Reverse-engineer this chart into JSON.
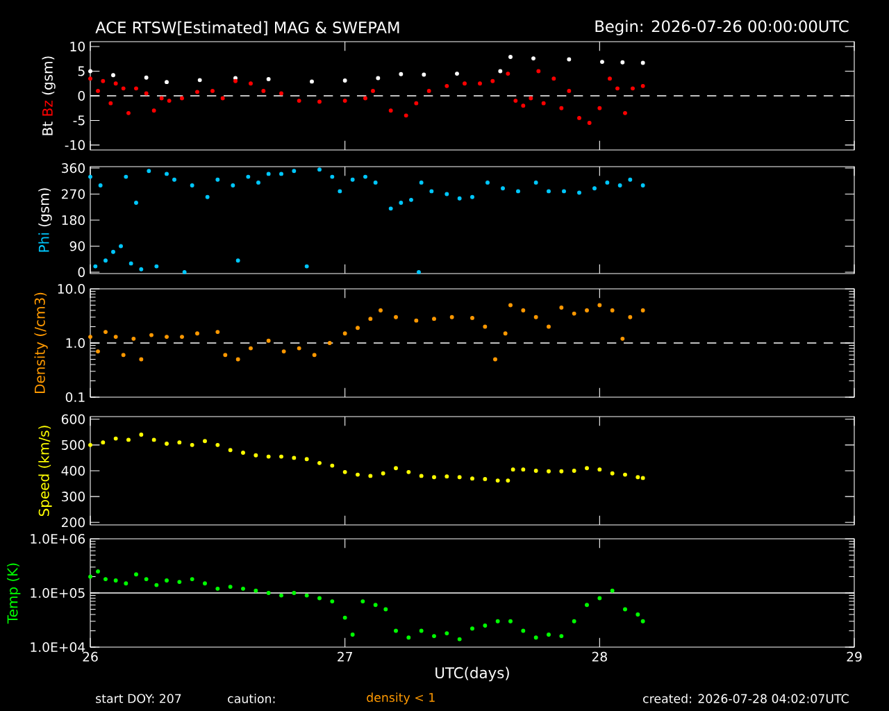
{
  "chart_data": [
    {
      "type": "scatter",
      "title": "ACE RTSW[Estimated] MAG & SWEPAM",
      "subtitle": "Begin: 2026-07-26 00:00:00UTC",
      "ylabel": "(gsm)",
      "marker": "circle",
      "tick_labels": "y",
      "xlim": [
        26,
        29
      ],
      "xticks": [
        26,
        27,
        28,
        29
      ],
      "ylim": [
        -11,
        11
      ],
      "yticks": [
        -10,
        -5,
        0,
        5,
        10
      ],
      "grid": false,
      "ref_lines": [
        {
          "axis": "y",
          "value": 0,
          "color": "#ffffff",
          "line_style": "dashed"
        }
      ],
      "series": [
        {
          "name": "Bt",
          "color": "#ffffff",
          "x": [
            26.0,
            26.09,
            26.22,
            26.3,
            26.43,
            26.57,
            26.7,
            26.87,
            27.0,
            27.13,
            27.22,
            27.31,
            27.44,
            27.61,
            27.65,
            27.74,
            27.88,
            28.01,
            28.09,
            28.17
          ],
          "values": [
            5.0,
            4.2,
            3.7,
            2.8,
            3.2,
            3.6,
            3.4,
            2.9,
            3.1,
            3.6,
            4.4,
            4.3,
            4.5,
            5.0,
            7.9,
            7.6,
            7.4,
            6.9,
            6.8,
            6.7
          ]
        },
        {
          "name": "Bz",
          "color": "#ff0000",
          "x": [
            26.0,
            26.03,
            26.05,
            26.08,
            26.1,
            26.13,
            26.15,
            26.18,
            26.22,
            26.25,
            26.28,
            26.31,
            26.36,
            26.42,
            26.48,
            26.52,
            26.57,
            26.63,
            26.68,
            26.75,
            26.82,
            26.9,
            27.0,
            27.08,
            27.11,
            27.18,
            27.24,
            27.28,
            27.33,
            27.4,
            27.47,
            27.53,
            27.58,
            27.64,
            27.67,
            27.7,
            27.73,
            27.76,
            27.78,
            27.82,
            27.85,
            27.88,
            27.92,
            27.96,
            28.0,
            28.04,
            28.07,
            28.1,
            28.13,
            28.17
          ],
          "values": [
            3.5,
            1.0,
            3.0,
            -1.5,
            2.5,
            1.5,
            -3.5,
            1.5,
            0.5,
            -3.0,
            -0.5,
            -1.0,
            -0.5,
            0.8,
            1.0,
            -0.5,
            3.0,
            2.5,
            1.0,
            0.5,
            -1.0,
            -1.2,
            -1.0,
            -0.5,
            1.0,
            -3.0,
            -4.0,
            -1.5,
            1.0,
            2.0,
            2.5,
            2.5,
            3.0,
            4.5,
            -1.0,
            -2.0,
            -0.5,
            5.0,
            -1.5,
            3.5,
            -2.5,
            1.0,
            -4.5,
            -5.5,
            -2.5,
            3.5,
            1.5,
            -3.5,
            1.5,
            2.0
          ]
        }
      ]
    },
    {
      "type": "scatter",
      "ylabel": "(gsm)",
      "marker": "circle",
      "tick_labels": "y",
      "xlim": [
        26,
        29
      ],
      "xticks": [
        26,
        27,
        28,
        29
      ],
      "ylim": [
        -5,
        365
      ],
      "yticks": [
        0,
        90,
        180,
        270,
        360
      ],
      "grid": false,
      "series": [
        {
          "name": "Phi",
          "color": "#00c8ff",
          "x": [
            26.0,
            26.02,
            26.04,
            26.06,
            26.09,
            26.12,
            26.14,
            26.16,
            26.18,
            26.2,
            26.23,
            26.26,
            26.3,
            26.33,
            26.37,
            26.4,
            26.46,
            26.5,
            26.56,
            26.58,
            26.62,
            26.66,
            26.7,
            26.75,
            26.8,
            26.85,
            26.9,
            26.95,
            26.98,
            27.03,
            27.08,
            27.12,
            27.18,
            27.22,
            27.26,
            27.29,
            27.3,
            27.34,
            27.4,
            27.45,
            27.5,
            27.56,
            27.62,
            27.68,
            27.75,
            27.8,
            27.86,
            27.92,
            27.98,
            28.03,
            28.08,
            28.12,
            28.17
          ],
          "values": [
            330,
            20,
            300,
            40,
            70,
            90,
            330,
            30,
            240,
            10,
            350,
            20,
            340,
            320,
            0,
            300,
            260,
            320,
            300,
            40,
            330,
            310,
            340,
            340,
            350,
            20,
            355,
            330,
            280,
            320,
            330,
            310,
            220,
            240,
            250,
            0,
            310,
            280,
            270,
            255,
            260,
            310,
            290,
            280,
            310,
            280,
            280,
            275,
            290,
            310,
            300,
            320,
            300
          ]
        }
      ]
    },
    {
      "type": "scatter",
      "ylabel": "Density (/cm3)",
      "marker": "circle",
      "tick_labels": "y",
      "log": "y",
      "xlim": [
        26,
        29
      ],
      "xticks": [
        26,
        27,
        28,
        29
      ],
      "ylim": [
        0.1,
        10
      ],
      "yticks": [
        {
          "value": 0.1,
          "label": "0.1"
        },
        {
          "value": 1,
          "label": "1.0"
        },
        {
          "value": 10,
          "label": "10.0"
        }
      ],
      "grid": false,
      "ref_lines": [
        {
          "axis": "y",
          "value": 1,
          "color": "#ffffff",
          "line_style": "dashed"
        }
      ],
      "series": [
        {
          "color": "#ff9900",
          "x": [
            26.0,
            26.03,
            26.06,
            26.1,
            26.13,
            26.17,
            26.2,
            26.24,
            26.3,
            26.36,
            26.42,
            26.5,
            26.53,
            26.58,
            26.63,
            26.7,
            26.76,
            26.82,
            26.88,
            26.94,
            27.0,
            27.05,
            27.1,
            27.14,
            27.2,
            27.28,
            27.35,
            27.42,
            27.5,
            27.55,
            27.59,
            27.63,
            27.65,
            27.7,
            27.75,
            27.8,
            27.85,
            27.9,
            27.95,
            28.0,
            28.05,
            28.09,
            28.12,
            28.17
          ],
          "values": [
            1.3,
            0.7,
            1.6,
            1.3,
            0.6,
            1.2,
            0.5,
            1.4,
            1.3,
            1.3,
            1.5,
            1.6,
            0.6,
            0.5,
            0.8,
            1.1,
            0.7,
            0.8,
            0.6,
            1.0,
            1.5,
            1.9,
            2.8,
            4.0,
            3.0,
            2.6,
            2.8,
            3.0,
            2.9,
            2.0,
            0.5,
            1.5,
            5.0,
            4.0,
            3.0,
            2.0,
            4.5,
            3.5,
            4.0,
            5.0,
            4.0,
            1.2,
            3.0,
            4.0
          ]
        }
      ]
    },
    {
      "type": "scatter",
      "ylabel": "Speed (km/s)",
      "marker": "circle",
      "tick_labels": "y",
      "xlim": [
        26,
        29
      ],
      "xticks": [
        26,
        27,
        28,
        29
      ],
      "ylim": [
        190,
        610
      ],
      "yticks": [
        200,
        300,
        400,
        500,
        600
      ],
      "grid": false,
      "series": [
        {
          "color": "#ffff00",
          "x": [
            26.0,
            26.05,
            26.1,
            26.15,
            26.2,
            26.25,
            26.3,
            26.35,
            26.4,
            26.45,
            26.5,
            26.55,
            26.6,
            26.65,
            26.7,
            26.75,
            26.8,
            26.85,
            26.9,
            26.95,
            27.0,
            27.05,
            27.1,
            27.15,
            27.2,
            27.25,
            27.3,
            27.35,
            27.4,
            27.45,
            27.5,
            27.55,
            27.6,
            27.64,
            27.66,
            27.7,
            27.75,
            27.8,
            27.85,
            27.9,
            27.95,
            28.0,
            28.05,
            28.1,
            28.15,
            28.17
          ],
          "values": [
            500,
            510,
            525,
            520,
            540,
            520,
            505,
            510,
            500,
            515,
            500,
            480,
            470,
            460,
            455,
            455,
            450,
            445,
            430,
            420,
            395,
            385,
            380,
            390,
            410,
            395,
            380,
            375,
            378,
            375,
            370,
            368,
            362,
            362,
            405,
            405,
            400,
            398,
            398,
            400,
            410,
            405,
            390,
            385,
            375,
            372
          ]
        }
      ]
    },
    {
      "type": "scatter",
      "ylabel": "Temp (K)",
      "xlabel": "UTC(days)",
      "marker": "circle",
      "log": "y",
      "xlim": [
        26,
        29
      ],
      "xticks": [
        26,
        27,
        28,
        29
      ],
      "ylim": [
        10000,
        1000000
      ],
      "yticks": [
        {
          "value": 10000,
          "label": "1.0E+04"
        },
        {
          "value": 100000,
          "label": "1.0E+05"
        },
        {
          "value": 1000000,
          "label": "1.0E+06"
        }
      ],
      "grid": false,
      "ref_lines": [
        {
          "axis": "y",
          "value": 100000,
          "color": "#ffffff",
          "line_style": "solid"
        }
      ],
      "annotations": [
        "start DOY: 207",
        "caution:",
        "density < 1",
        "created: 2026-07-28 04:02:07UTC"
      ],
      "series": [
        {
          "color": "#00ff00",
          "x": [
            26.0,
            26.03,
            26.06,
            26.1,
            26.14,
            26.18,
            26.22,
            26.26,
            26.3,
            26.35,
            26.4,
            26.45,
            26.5,
            26.55,
            26.6,
            26.65,
            26.7,
            26.75,
            26.8,
            26.85,
            26.9,
            26.95,
            27.0,
            27.03,
            27.07,
            27.12,
            27.16,
            27.2,
            27.25,
            27.3,
            27.35,
            27.4,
            27.45,
            27.5,
            27.55,
            27.6,
            27.65,
            27.7,
            27.75,
            27.8,
            27.85,
            27.9,
            27.95,
            28.0,
            28.05,
            28.1,
            28.15,
            28.17
          ],
          "values": [
            200000,
            250000,
            180000,
            170000,
            150000,
            220000,
            180000,
            140000,
            170000,
            160000,
            180000,
            150000,
            120000,
            130000,
            120000,
            110000,
            100000,
            90000,
            100000,
            90000,
            80000,
            70000,
            35000,
            17000,
            70000,
            60000,
            50000,
            20000,
            15000,
            20000,
            16000,
            18000,
            14000,
            22000,
            25000,
            30000,
            30000,
            20000,
            15000,
            17000,
            16000,
            30000,
            60000,
            80000,
            110000,
            50000,
            40000,
            30000
          ]
        }
      ]
    }
  ]
}
